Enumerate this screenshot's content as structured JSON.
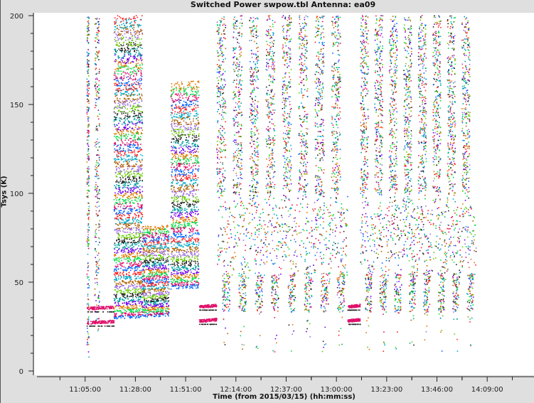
{
  "chart_data": {
    "type": "scatter",
    "title": "Switched Power  swpow.tbl   Antenna: ea09",
    "xlabel": "Time (from 2015/03/15) (hh:mm:ss)",
    "ylabel": "Tsys (K)",
    "xlim": [
      "10:41:40",
      "14:30:25"
    ],
    "ylim": [
      0,
      200
    ],
    "x_ticks": [
      "11:05:00",
      "11:28:00",
      "11:51:00",
      "12:14:00",
      "12:37:00",
      "13:00:00",
      "13:23:00",
      "13:46:00",
      "14:09:00"
    ],
    "y_ticks": [
      0,
      50,
      100,
      150,
      200
    ],
    "grid": false,
    "legend": "none",
    "colors": [
      "#0066ff",
      "#e0106a",
      "#00dd44",
      "#e07800",
      "#7000f0",
      "#00a0a0",
      "#202020",
      "#66cc00",
      "#a070e0",
      "#b06000",
      "#00aacc",
      "#ff2020"
    ],
    "scans": [
      {
        "kind": "spike",
        "start": "11:05:36",
        "end": "11:06:36",
        "tsys": [
          5,
          200
        ]
      },
      {
        "kind": "spike",
        "start": "11:09:12",
        "end": "11:11:30",
        "tsys": [
          22,
          200
        ]
      },
      {
        "kind": "bands",
        "start": "11:05:36",
        "end": "11:18:00",
        "levels": [
          27,
          35
        ]
      },
      {
        "kind": "bands",
        "start": "11:18:00",
        "end": "11:31:00",
        "tsys": [
          30,
          198
        ],
        "n_bands": 60
      },
      {
        "kind": "bands",
        "start": "11:31:00",
        "end": "11:43:12",
        "tsys": [
          31,
          80
        ],
        "n_bands": 28
      },
      {
        "kind": "bands",
        "start": "11:44:00",
        "end": "11:56:50",
        "tsys": [
          47,
          160
        ],
        "n_bands": 40
      },
      {
        "kind": "bands",
        "start": "11:57:00",
        "end": "12:05:00",
        "levels": [
          28,
          36
        ]
      },
      {
        "kind": "cycling",
        "start": "12:05:00",
        "end": "13:05:00",
        "n_cycles": 8,
        "tsys_high": [
          100,
          200
        ],
        "tsys_mid": [
          55,
          100
        ],
        "tsys_low": [
          33,
          55
        ]
      },
      {
        "kind": "bands",
        "start": "13:05:00",
        "end": "13:10:40",
        "levels": [
          28,
          36
        ]
      },
      {
        "kind": "cycling",
        "start": "13:10:40",
        "end": "14:03:50",
        "n_cycles": 8,
        "tsys_high": [
          100,
          200
        ],
        "tsys_mid": [
          55,
          100
        ],
        "tsys_low": [
          33,
          55
        ]
      }
    ]
  }
}
